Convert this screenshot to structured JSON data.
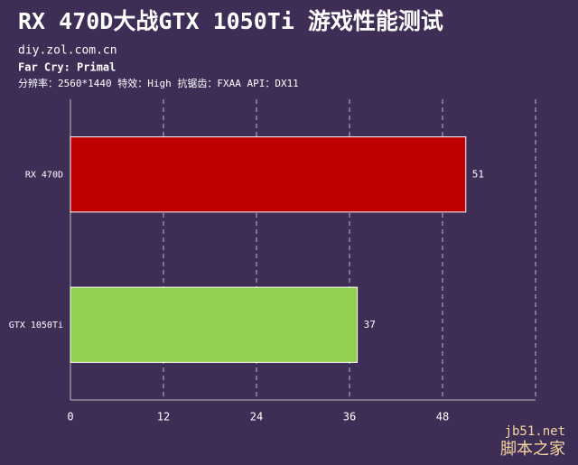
{
  "chart_data": {
    "type": "bar",
    "orientation": "horizontal",
    "title": "RX 470D大战GTX 1050Ti 游戏性能测试",
    "subtitle": "diy.zol.com.cn",
    "game": "Far Cry: Primal",
    "settings": "分辨率：2560*1440  特效：High  抗锯齿：FXAA  API：DX11",
    "categories": [
      "RX 470D",
      "GTX 1050Ti"
    ],
    "series": [
      {
        "values": [
          51,
          37
        ],
        "colors": [
          "#c00000",
          "#92d050"
        ]
      }
    ],
    "xlim": [
      0,
      60
    ],
    "xticks": [
      0,
      12,
      24,
      36,
      48
    ],
    "grid": true,
    "watermark": [
      "jb51.net",
      "脚本之家"
    ]
  }
}
